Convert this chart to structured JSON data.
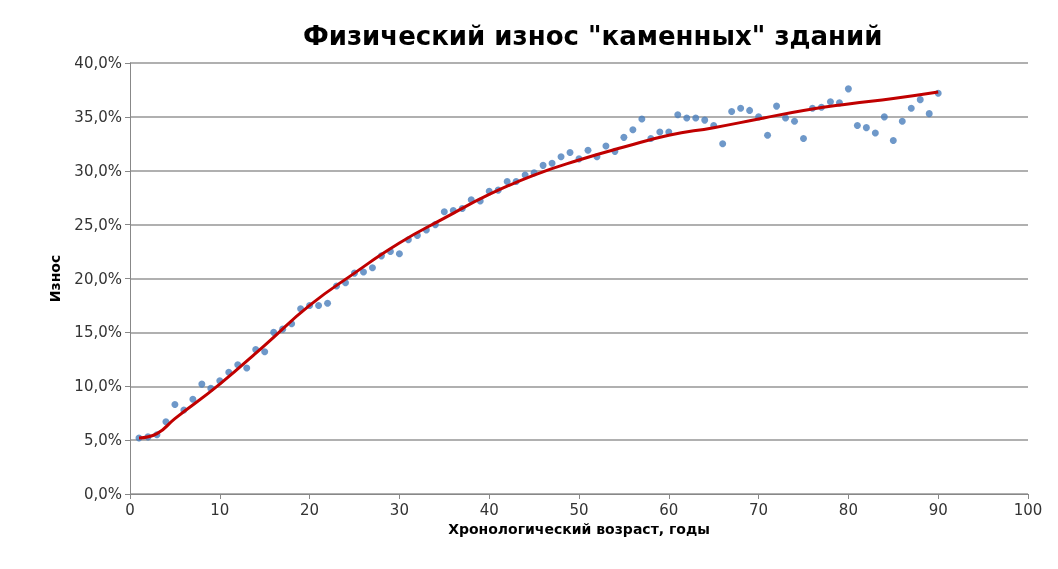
{
  "chart_data": {
    "type": "scatter",
    "title": "Физический износ \"каменных\" зданий",
    "xlabel": "Хронологический возраст, годы",
    "ylabel": "Износ",
    "xlim": [
      0,
      100
    ],
    "xticks": [
      0,
      10,
      20,
      30,
      40,
      50,
      60,
      70,
      80,
      90,
      100
    ],
    "ylim": [
      0,
      40
    ],
    "yticks": [
      {
        "value": 0,
        "label": "0,0%"
      },
      {
        "value": 5,
        "label": "5,0%"
      },
      {
        "value": 10,
        "label": "10,0%"
      },
      {
        "value": 15,
        "label": "15,0%"
      },
      {
        "value": 20,
        "label": "20,0%"
      },
      {
        "value": 25,
        "label": "25,0%"
      },
      {
        "value": 30,
        "label": "30,0%"
      },
      {
        "value": 35,
        "label": "35,0%"
      },
      {
        "value": 40,
        "label": "40,0%"
      }
    ],
    "grid": "y",
    "series": [
      {
        "color": "#4a7ebb",
        "marker": "circle",
        "x": [
          1,
          2,
          3,
          4,
          5,
          6,
          7,
          8,
          9,
          10,
          11,
          12,
          13,
          14,
          15,
          16,
          17,
          18,
          19,
          20,
          21,
          22,
          23,
          24,
          25,
          26,
          27,
          28,
          29,
          30,
          31,
          32,
          33,
          34,
          35,
          36,
          37,
          38,
          39,
          40,
          41,
          42,
          43,
          44,
          45,
          46,
          47,
          48,
          49,
          50,
          51,
          52,
          53,
          54,
          55,
          56,
          57,
          58,
          59,
          60,
          61,
          62,
          63,
          64,
          65,
          66,
          67,
          68,
          69,
          70,
          71,
          72,
          73,
          74,
          75,
          76,
          77,
          78,
          79,
          80,
          81,
          82,
          83,
          84,
          85,
          86,
          87,
          88,
          89,
          90
        ],
        "values": [
          5.2,
          5.3,
          5.5,
          6.7,
          8.3,
          7.8,
          8.8,
          10.2,
          9.8,
          10.5,
          11.3,
          12.0,
          11.7,
          13.4,
          13.2,
          15.0,
          15.3,
          15.8,
          17.2,
          17.5,
          17.5,
          17.7,
          19.3,
          19.6,
          20.5,
          20.6,
          21.0,
          22.1,
          22.5,
          22.3,
          23.6,
          24.0,
          24.5,
          25.0,
          26.2,
          26.3,
          26.5,
          27.3,
          27.2,
          28.1,
          28.2,
          29.0,
          29.0,
          29.6,
          29.8,
          30.5,
          30.7,
          31.3,
          31.7,
          31.1,
          31.9,
          31.3,
          32.3,
          31.8,
          33.1,
          33.8,
          34.8,
          33.0,
          33.6,
          33.6,
          35.2,
          34.9,
          34.9,
          34.7,
          34.2,
          32.5,
          35.5,
          35.8,
          35.6,
          35.0,
          33.3,
          36.0,
          34.9,
          34.6,
          33.0,
          35.8,
          35.9,
          36.4,
          36.3,
          37.6,
          34.2,
          34.0,
          33.5,
          35.0,
          32.8,
          34.6,
          35.8,
          36.6,
          35.3,
          37.2
        ]
      },
      {
        "type": "line",
        "color": "#c00000",
        "marker": "none",
        "line_style": "solid",
        "x": [
          1,
          3,
          5,
          10,
          15,
          20,
          25,
          30,
          35,
          40,
          45,
          50,
          55,
          60,
          65,
          70,
          75,
          80,
          85,
          90
        ],
        "values": [
          5.2,
          5.6,
          7.0,
          10.2,
          13.8,
          17.5,
          20.5,
          23.3,
          25.6,
          27.8,
          29.6,
          31.0,
          32.2,
          33.3,
          34.0,
          34.8,
          35.6,
          36.2,
          36.7,
          37.3
        ]
      }
    ]
  }
}
